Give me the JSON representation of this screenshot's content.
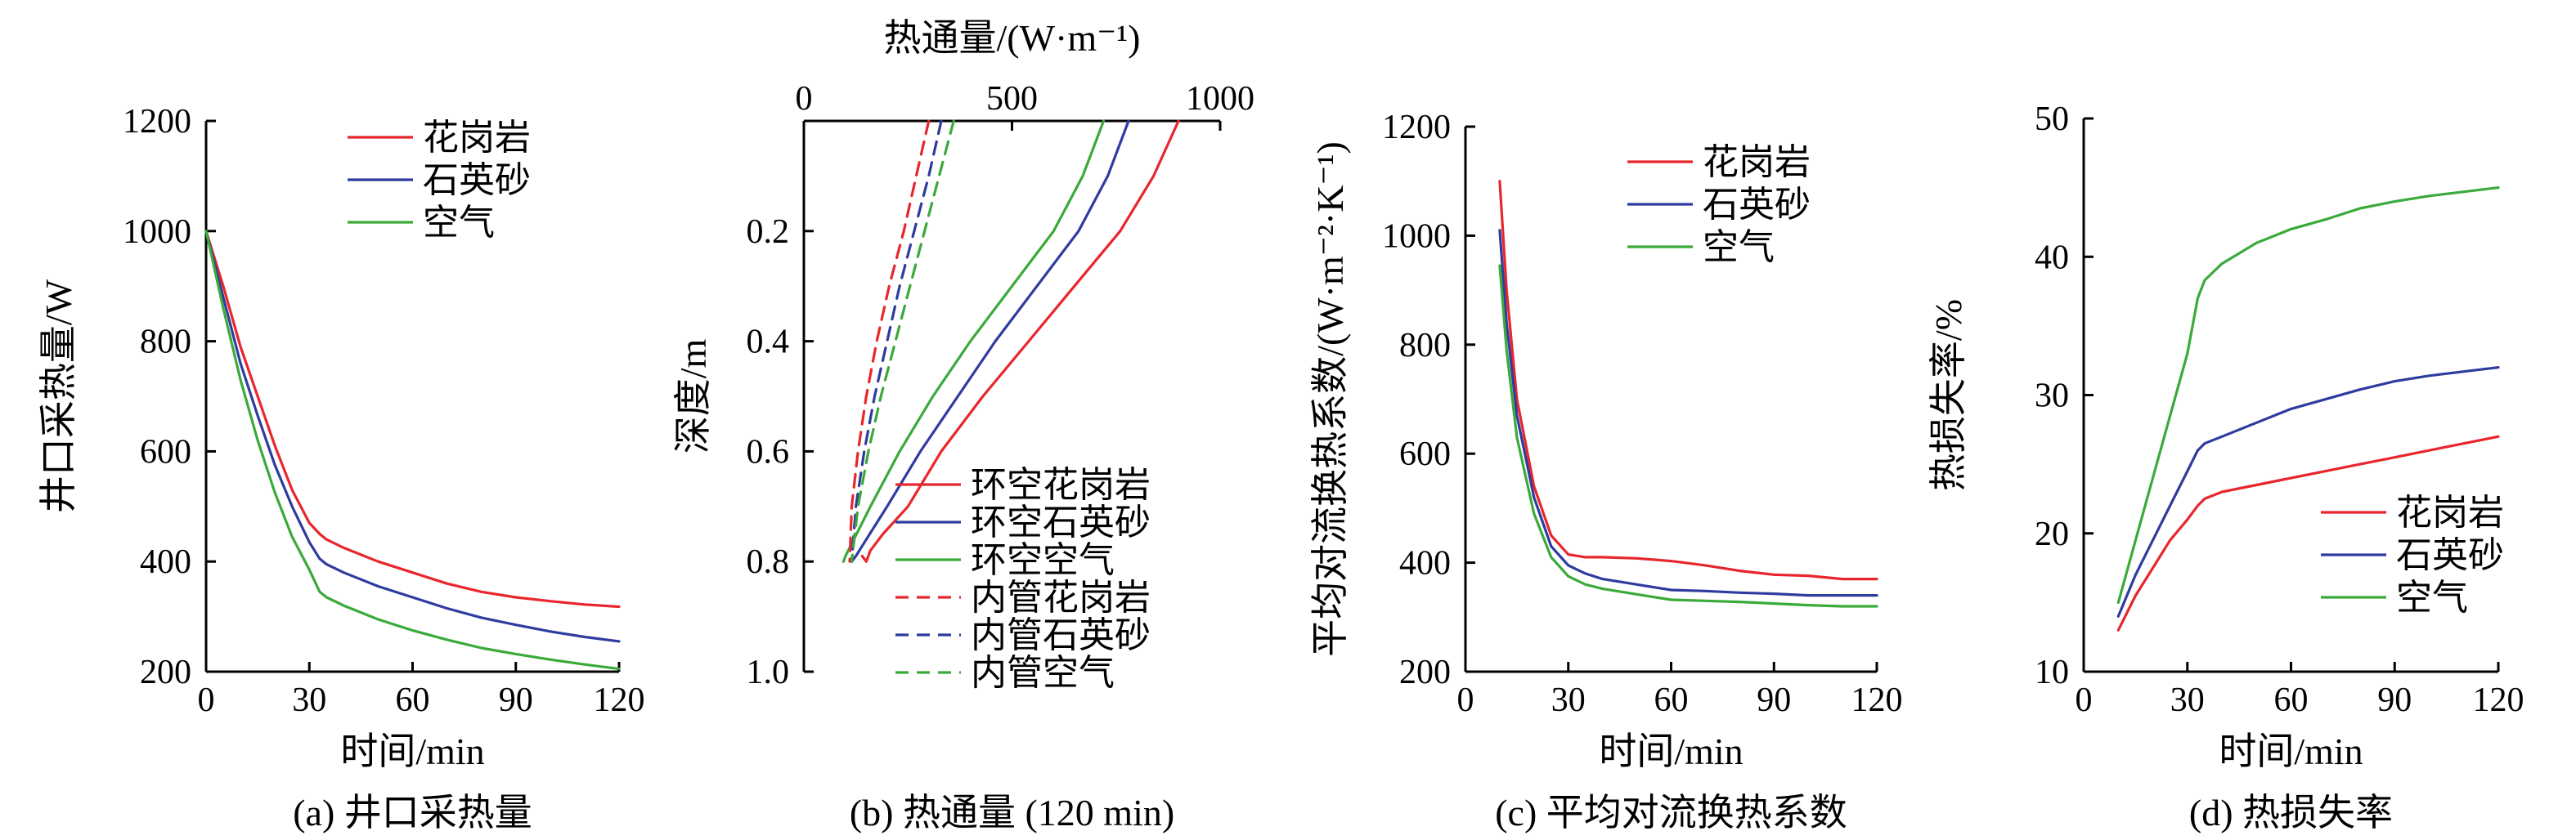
{
  "colors": {
    "red": "#e8262d",
    "blue": "#2e3c9f",
    "green": "#3aaa3a"
  },
  "chart_data": [
    {
      "type": "line",
      "caption": "(a) 井口采热量",
      "xlabel": "时间/min",
      "ylabel": "井口采热量/W",
      "xlim": [
        0,
        120
      ],
      "ylim": [
        200,
        1200
      ],
      "xticks": [
        0,
        30,
        60,
        90,
        120
      ],
      "yticks": [
        200,
        400,
        600,
        800,
        1000,
        1200
      ],
      "legend_position": "top-center",
      "series": [
        {
          "name": "花岗岩",
          "color": "#e8262d",
          "x": [
            0,
            5,
            10,
            15,
            20,
            25,
            30,
            33,
            35,
            40,
            50,
            60,
            70,
            80,
            90,
            100,
            110,
            120
          ],
          "y": [
            1000,
            900,
            790,
            700,
            610,
            530,
            470,
            450,
            440,
            425,
            400,
            380,
            360,
            345,
            335,
            328,
            322,
            318
          ]
        },
        {
          "name": "石英砂",
          "color": "#2e3c9f",
          "x": [
            0,
            5,
            10,
            15,
            20,
            25,
            30,
            33,
            35,
            40,
            50,
            60,
            70,
            80,
            90,
            100,
            110,
            120
          ],
          "y": [
            1000,
            880,
            760,
            665,
            575,
            500,
            435,
            405,
            395,
            380,
            355,
            335,
            315,
            298,
            285,
            273,
            263,
            255
          ]
        },
        {
          "name": "空气",
          "color": "#3aaa3a",
          "x": [
            0,
            5,
            10,
            15,
            20,
            25,
            30,
            33,
            35,
            40,
            50,
            60,
            70,
            80,
            90,
            100,
            110,
            120
          ],
          "y": [
            1000,
            860,
            730,
            620,
            525,
            445,
            385,
            345,
            335,
            320,
            295,
            275,
            258,
            243,
            232,
            222,
            213,
            205
          ]
        }
      ]
    },
    {
      "type": "line",
      "caption": "(b) 热通量 (120 min)",
      "xlabel": "热通量/(W·m⁻¹)",
      "ylabel": "深度/m",
      "xaxis_position": "top",
      "y_inverted": true,
      "xlim": [
        0,
        1000
      ],
      "ylim": [
        0,
        1.0
      ],
      "xticks": [
        0,
        500,
        1000
      ],
      "yticks": [
        0.2,
        0.4,
        0.6,
        0.8,
        1.0
      ],
      "legend_position": "bottom-right",
      "series": [
        {
          "name": "环空花岗岩",
          "color": "#e8262d",
          "dash": false,
          "x": [
            900,
            840,
            760,
            650,
            540,
            430,
            330,
            250,
            190,
            160,
            150,
            140
          ],
          "y": [
            0,
            0.1,
            0.2,
            0.3,
            0.4,
            0.5,
            0.6,
            0.7,
            0.75,
            0.78,
            0.8,
            0.79
          ]
        },
        {
          "name": "环空石英砂",
          "color": "#2e3c9f",
          "dash": false,
          "x": [
            780,
            730,
            660,
            560,
            460,
            370,
            280,
            200,
            150,
            125,
            115
          ],
          "y": [
            0,
            0.1,
            0.2,
            0.3,
            0.4,
            0.5,
            0.6,
            0.7,
            0.76,
            0.79,
            0.8
          ]
        },
        {
          "name": "环空空气",
          "color": "#3aaa3a",
          "dash": false,
          "x": [
            720,
            670,
            600,
            500,
            400,
            310,
            230,
            160,
            120,
            100,
            95
          ],
          "y": [
            0,
            0.1,
            0.2,
            0.3,
            0.4,
            0.5,
            0.6,
            0.7,
            0.76,
            0.79,
            0.8
          ]
        },
        {
          "name": "内管花岗岩",
          "color": "#e8262d",
          "dash": true,
          "x": [
            300,
            270,
            240,
            205,
            175,
            150,
            130,
            115,
            110
          ],
          "y": [
            0,
            0.1,
            0.2,
            0.3,
            0.4,
            0.5,
            0.6,
            0.7,
            0.8
          ]
        },
        {
          "name": "内管石英砂",
          "color": "#2e3c9f",
          "dash": true,
          "x": [
            330,
            300,
            265,
            230,
            200,
            170,
            145,
            125,
            115
          ],
          "y": [
            0,
            0.1,
            0.2,
            0.3,
            0.4,
            0.5,
            0.6,
            0.7,
            0.8
          ]
        },
        {
          "name": "内管空气",
          "color": "#3aaa3a",
          "dash": true,
          "x": [
            360,
            325,
            290,
            255,
            220,
            185,
            155,
            130,
            115
          ],
          "y": [
            0,
            0.1,
            0.2,
            0.3,
            0.4,
            0.5,
            0.6,
            0.7,
            0.8
          ]
        }
      ]
    },
    {
      "type": "line",
      "caption": "(c) 平均对流换热系数",
      "xlabel": "时间/min",
      "ylabel": "平均对流换热系数/(W·m⁻²·K⁻¹)",
      "xlim": [
        0,
        120
      ],
      "ylim": [
        200,
        1200
      ],
      "xticks": [
        0,
        30,
        60,
        90,
        120
      ],
      "yticks": [
        200,
        400,
        600,
        800,
        1000,
        1200
      ],
      "legend_position": "top-right",
      "series": [
        {
          "name": "花岗岩",
          "color": "#e8262d",
          "x": [
            10,
            12,
            15,
            20,
            25,
            30,
            35,
            40,
            50,
            60,
            70,
            80,
            90,
            100,
            110,
            120
          ],
          "y": [
            1100,
            900,
            700,
            540,
            450,
            415,
            410,
            410,
            408,
            403,
            395,
            385,
            378,
            376,
            370,
            370
          ]
        },
        {
          "name": "石英砂",
          "color": "#2e3c9f",
          "x": [
            10,
            12,
            15,
            20,
            25,
            30,
            35,
            40,
            50,
            60,
            70,
            80,
            90,
            100,
            110,
            120
          ],
          "y": [
            1010,
            840,
            670,
            520,
            430,
            395,
            380,
            370,
            360,
            350,
            348,
            345,
            343,
            340,
            340,
            340
          ]
        },
        {
          "name": "空气",
          "color": "#3aaa3a",
          "x": [
            10,
            12,
            15,
            20,
            25,
            30,
            35,
            40,
            50,
            60,
            70,
            80,
            90,
            100,
            110,
            120
          ],
          "y": [
            945,
            790,
            630,
            490,
            410,
            375,
            360,
            352,
            342,
            332,
            330,
            328,
            325,
            322,
            320,
            320
          ]
        }
      ]
    },
    {
      "type": "line",
      "caption": "(d) 热损失率",
      "xlabel": "时间/min",
      "ylabel": "热损失率/%",
      "xlim": [
        0,
        120
      ],
      "ylim": [
        10,
        50
      ],
      "xticks": [
        0,
        30,
        60,
        90,
        120
      ],
      "yticks": [
        10,
        20,
        30,
        40,
        50
      ],
      "legend_position": "bottom-right",
      "series": [
        {
          "name": "花岗岩",
          "color": "#e8262d",
          "x": [
            10,
            15,
            20,
            25,
            30,
            33,
            35,
            40,
            50,
            60,
            70,
            80,
            90,
            100,
            110,
            120
          ],
          "y": [
            13,
            15.5,
            17.5,
            19.5,
            21,
            22,
            22.5,
            23,
            23.5,
            24,
            24.5,
            25,
            25.5,
            26,
            26.5,
            27
          ]
        },
        {
          "name": "石英砂",
          "color": "#2e3c9f",
          "x": [
            10,
            15,
            20,
            25,
            30,
            33,
            35,
            40,
            50,
            60,
            70,
            80,
            90,
            100,
            110,
            120
          ],
          "y": [
            14,
            17,
            19.5,
            22,
            24.5,
            26,
            26.5,
            27,
            28,
            29,
            29.7,
            30.4,
            31,
            31.4,
            31.7,
            32
          ]
        },
        {
          "name": "空气",
          "color": "#3aaa3a",
          "x": [
            10,
            15,
            20,
            25,
            30,
            33,
            35,
            40,
            50,
            60,
            70,
            80,
            90,
            100,
            110,
            120
          ],
          "y": [
            15,
            19.5,
            24,
            28.5,
            33,
            37,
            38.3,
            39.5,
            41,
            42,
            42.7,
            43.5,
            44,
            44.4,
            44.7,
            45
          ]
        }
      ]
    }
  ]
}
